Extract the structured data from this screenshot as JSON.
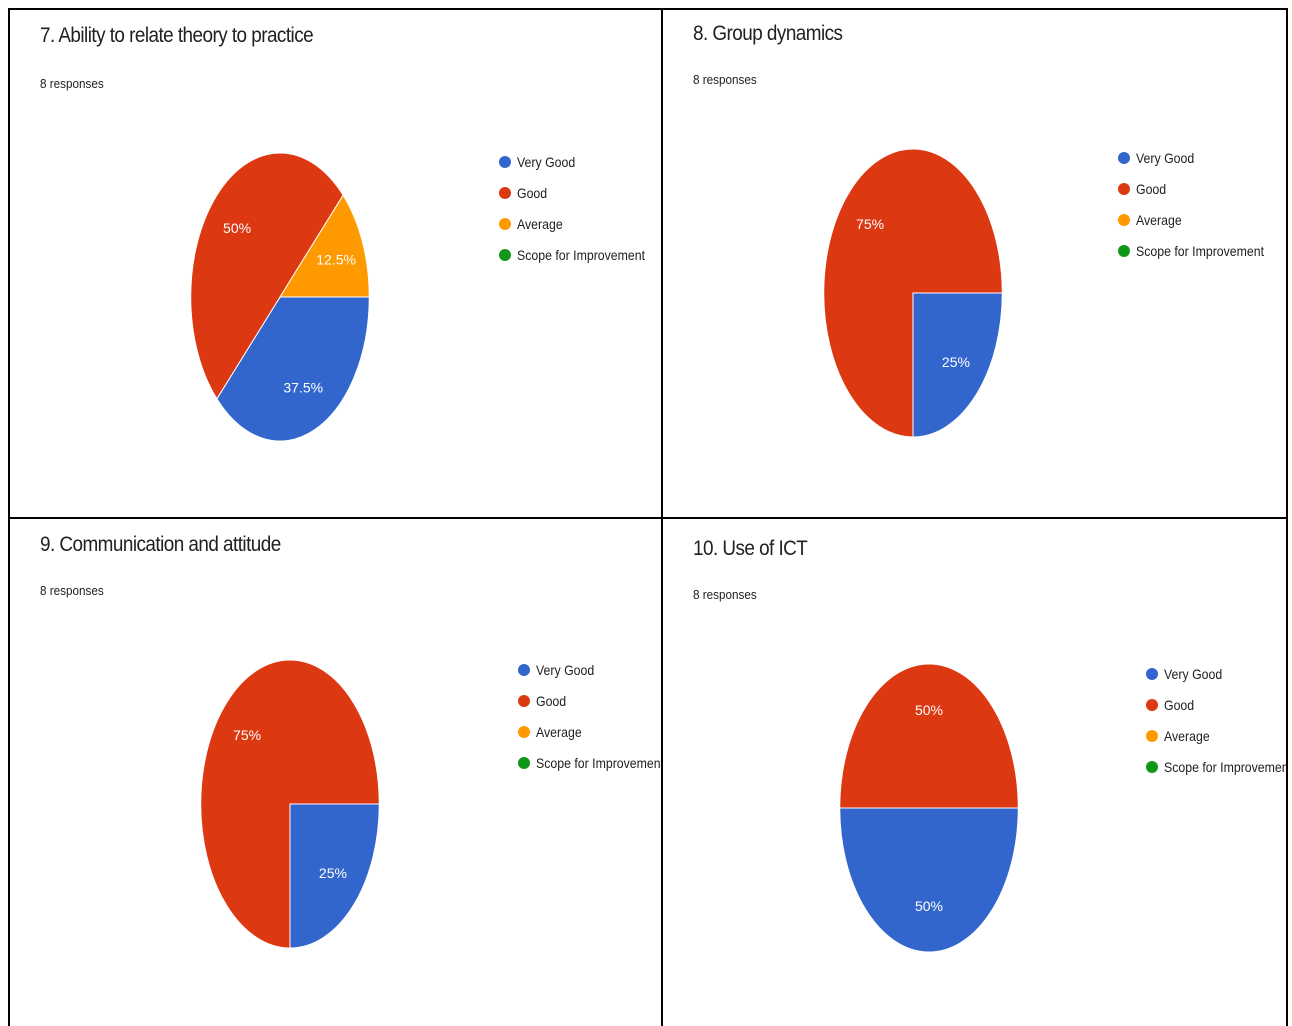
{
  "legend_colors": {
    "Very Good": "#3366cc",
    "Good": "#dc3912",
    "Average": "#ff9900",
    "Scope for Improvement": "#109618"
  },
  "panels": [
    {
      "title": "7. Ability to relate theory to practice",
      "responses": "8 responses"
    },
    {
      "title": "8. Group dynamics",
      "responses": "8 responses"
    },
    {
      "title": "9. Communication and attitude",
      "responses": "8 responses"
    },
    {
      "title": "10. Use of ICT",
      "responses": "8 responses"
    }
  ],
  "legend_labels": [
    "Very Good",
    "Good",
    "Average",
    "Scope for Improvement"
  ],
  "chart_data": [
    {
      "type": "pie",
      "title": "7. Ability to relate theory to practice",
      "subtitle": "8 responses",
      "categories": [
        "Very Good",
        "Good",
        "Average",
        "Scope for Improvement"
      ],
      "values": [
        37.5,
        50,
        12.5,
        0
      ],
      "labels": [
        "37.5%",
        "50%",
        "12.5%",
        ""
      ],
      "legend": "right"
    },
    {
      "type": "pie",
      "title": "8. Group dynamics",
      "subtitle": "8 responses",
      "categories": [
        "Very Good",
        "Good",
        "Average",
        "Scope for Improvement"
      ],
      "values": [
        25,
        75,
        0,
        0
      ],
      "labels": [
        "25%",
        "75%",
        "",
        ""
      ],
      "legend": "right"
    },
    {
      "type": "pie",
      "title": "9. Communication and attitude",
      "subtitle": "8 responses",
      "categories": [
        "Very Good",
        "Good",
        "Average",
        "Scope for Improvement"
      ],
      "values": [
        25,
        75,
        0,
        0
      ],
      "labels": [
        "25%",
        "75%",
        "",
        ""
      ],
      "legend": "right"
    },
    {
      "type": "pie",
      "title": "10. Use of ICT",
      "subtitle": "8 responses",
      "categories": [
        "Very Good",
        "Good",
        "Average",
        "Scope for Improvement"
      ],
      "values": [
        50,
        50,
        0,
        0
      ],
      "labels": [
        "50%",
        "50%",
        "",
        ""
      ],
      "legend": "right"
    }
  ]
}
